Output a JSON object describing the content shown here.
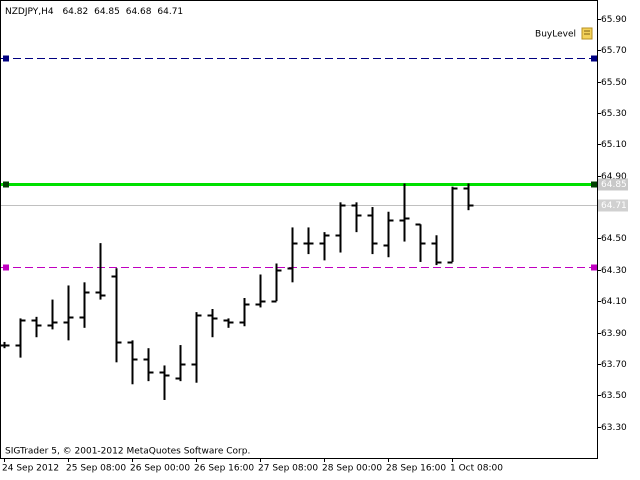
{
  "chart_data": {
    "type": "ohlc",
    "title": "NZDJPY,H4",
    "footer": "SIGTrader 5, © 2001-2012 MetaQuotes Software Corp.",
    "annotation": "BuyLevel",
    "color": "#000000",
    "categories": [
      "24 Sep 2012",
      null,
      null,
      null,
      "25 Sep 08:00",
      null,
      null,
      null,
      "26 Sep 00:00",
      null,
      null,
      null,
      "26 Sep 16:00",
      null,
      null,
      null,
      "27 Sep 08:00",
      null,
      null,
      null,
      "28 Sep 00:00",
      null,
      null,
      null,
      "28 Sep 16:00",
      null,
      null,
      null,
      "1 Oct 08:00",
      null
    ],
    "open": [
      63.82,
      63.82,
      63.98,
      63.95,
      63.97,
      64.0,
      64.16,
      64.26,
      63.84,
      63.73,
      63.65,
      63.61,
      63.7,
      64.01,
      63.98,
      63.97,
      64.08,
      64.1,
      64.31,
      64.47,
      64.47,
      64.52,
      64.71,
      64.65,
      64.46,
      64.62,
      64.59,
      64.47,
      64.35,
      64.82
    ],
    "high": [
      63.84,
      63.99,
      64.0,
      64.11,
      64.2,
      64.22,
      64.47,
      64.31,
      63.85,
      63.8,
      63.69,
      63.82,
      64.03,
      64.05,
      63.99,
      64.12,
      64.27,
      64.34,
      64.57,
      64.57,
      64.54,
      64.73,
      64.73,
      64.7,
      64.67,
      64.85,
      64.59,
      64.52,
      64.83,
      64.85
    ],
    "low": [
      63.8,
      63.74,
      63.87,
      63.92,
      63.85,
      63.93,
      64.11,
      63.71,
      63.57,
      63.59,
      63.47,
      63.59,
      63.58,
      63.87,
      63.93,
      63.94,
      64.06,
      64.1,
      64.22,
      64.4,
      64.36,
      64.41,
      64.54,
      64.4,
      64.38,
      64.48,
      64.35,
      64.33,
      64.35,
      64.68
    ],
    "close": [
      63.82,
      63.98,
      63.95,
      63.97,
      64.0,
      64.16,
      64.14,
      63.84,
      63.73,
      63.65,
      63.63,
      63.7,
      64.01,
      63.99,
      63.97,
      64.08,
      64.1,
      64.3,
      64.47,
      64.47,
      64.52,
      64.71,
      64.65,
      64.47,
      64.62,
      64.63,
      64.47,
      64.35,
      64.82,
      64.71
    ],
    "ylim": [
      63.1,
      66.02
    ],
    "yticks": [
      {
        "value": 65.9,
        "label": "65.90"
      },
      {
        "value": 65.7,
        "label": "65.70"
      },
      {
        "value": 65.5,
        "label": "65.50"
      },
      {
        "value": 65.3,
        "label": "65.30"
      },
      {
        "value": 65.1,
        "label": "65.10"
      },
      {
        "value": 64.9,
        "label": "64.90"
      },
      {
        "value": 64.5,
        "label": "64.50"
      },
      {
        "value": 64.3,
        "label": "64.30"
      },
      {
        "value": 64.1,
        "label": "64.10"
      },
      {
        "value": 63.9,
        "label": "63.90"
      },
      {
        "value": 63.7,
        "label": "63.70"
      },
      {
        "value": 63.5,
        "label": "63.50"
      },
      {
        "value": 63.3,
        "label": "63.30"
      }
    ],
    "hlines": [
      {
        "value": 65.65,
        "color": "#000080",
        "style": "dashed",
        "width": 1,
        "handles": true
      },
      {
        "value": 64.85,
        "color": "#00e000",
        "style": "solid",
        "width": 3,
        "handles": true,
        "price_label": true
      },
      {
        "value": 64.71,
        "color": "#c0c0c0",
        "style": "solid",
        "width": 1,
        "handles": false,
        "price_label": true
      },
      {
        "value": 64.32,
        "color": "#c000c0",
        "style": "dashed",
        "width": 1,
        "handles": true
      }
    ]
  }
}
